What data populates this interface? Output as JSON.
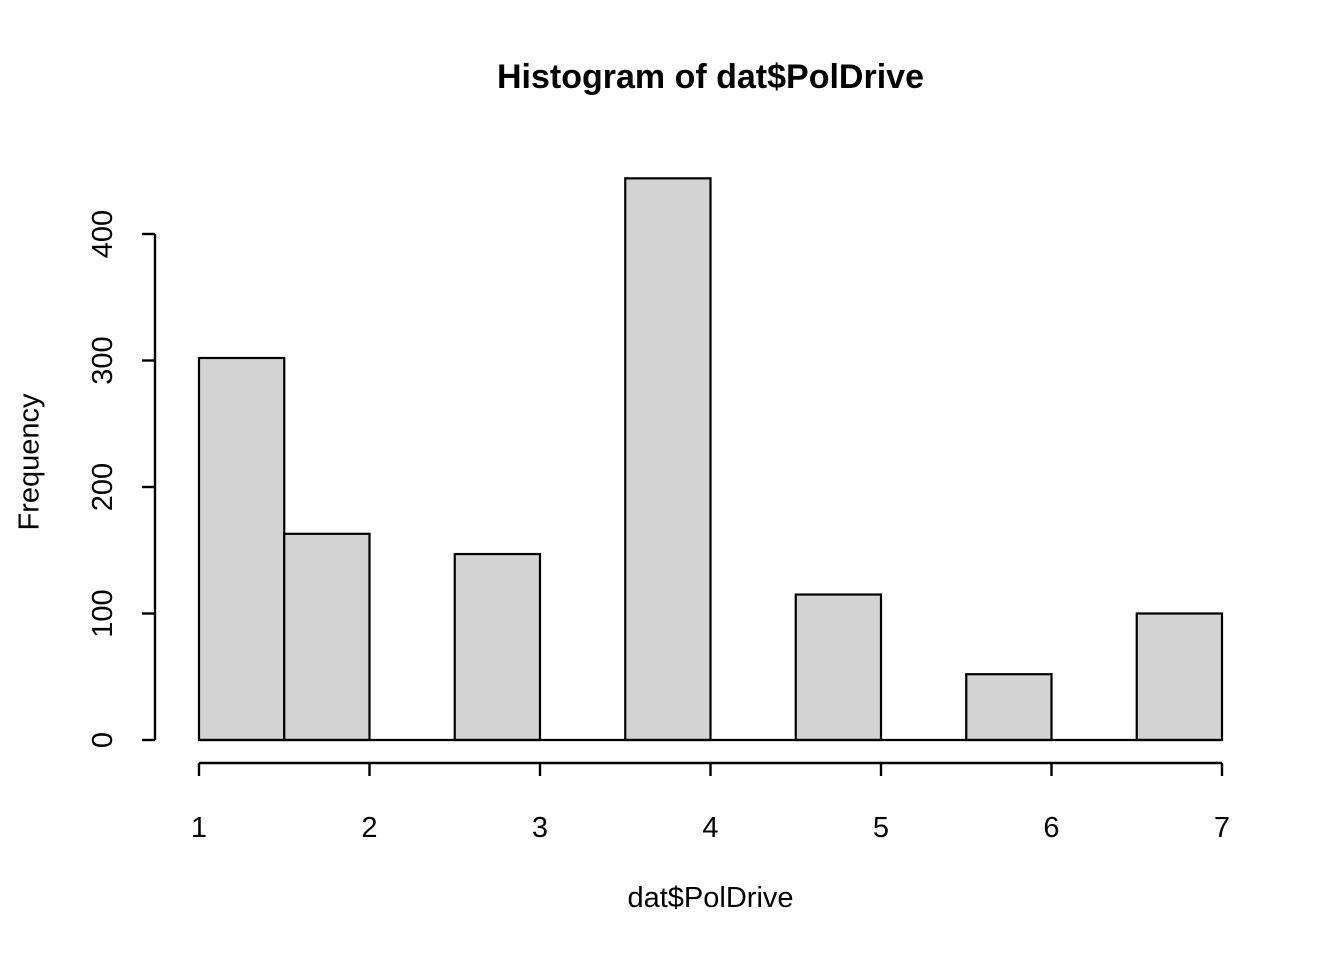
{
  "chart_data": {
    "type": "histogram",
    "title": "Histogram of dat$PolDrive",
    "xlabel": "dat$PolDrive",
    "ylabel": "Frequency",
    "xlim": [
      1,
      7
    ],
    "ylim": [
      0,
      400
    ],
    "x_ticks": [
      1,
      2,
      3,
      4,
      5,
      6,
      7
    ],
    "y_ticks": [
      0,
      100,
      200,
      300,
      400
    ],
    "bin_width": 0.5,
    "bins": [
      {
        "x0": 1.0,
        "x1": 1.5,
        "count": 302
      },
      {
        "x0": 1.5,
        "x1": 2.0,
        "count": 163
      },
      {
        "x0": 2.0,
        "x1": 2.5,
        "count": 0
      },
      {
        "x0": 2.5,
        "x1": 3.0,
        "count": 147
      },
      {
        "x0": 3.0,
        "x1": 3.5,
        "count": 0
      },
      {
        "x0": 3.5,
        "x1": 4.0,
        "count": 444
      },
      {
        "x0": 4.0,
        "x1": 4.5,
        "count": 0
      },
      {
        "x0": 4.5,
        "x1": 5.0,
        "count": 115
      },
      {
        "x0": 5.0,
        "x1": 5.5,
        "count": 0
      },
      {
        "x0": 5.5,
        "x1": 6.0,
        "count": 52
      },
      {
        "x0": 6.0,
        "x1": 6.5,
        "count": 0
      },
      {
        "x0": 6.5,
        "x1": 7.0,
        "count": 100
      }
    ],
    "grid": false,
    "legend": null,
    "colors": {
      "bar_fill": "#d3d3d3",
      "bar_border": "#000000",
      "axis": "#000000",
      "text": "#000000",
      "background": "#ffffff"
    }
  }
}
